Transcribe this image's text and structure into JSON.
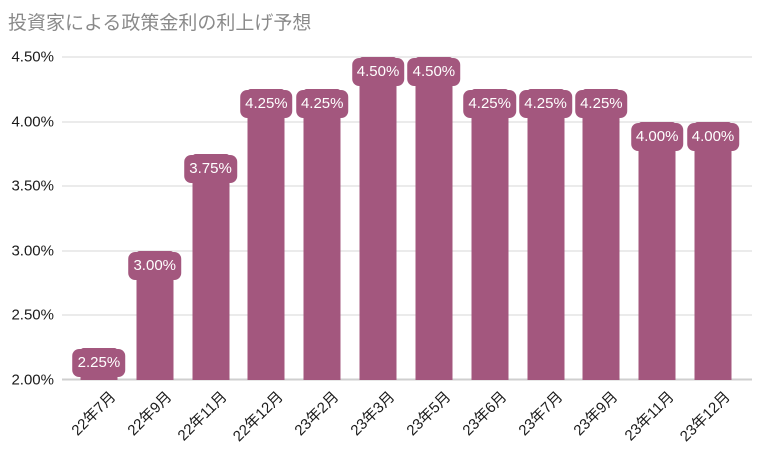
{
  "chart_data": {
    "type": "bar",
    "title": "投資家による政策金利の利上げ予想",
    "categories": [
      "22年7月",
      "22年9月",
      "22年11月",
      "22年12月",
      "23年2月",
      "23年3月",
      "23年5月",
      "23年6月",
      "23年7月",
      "23年9月",
      "23年11月",
      "23年12月"
    ],
    "values": [
      2.25,
      3.0,
      3.75,
      4.25,
      4.25,
      4.5,
      4.5,
      4.25,
      4.25,
      4.25,
      4.0,
      4.0
    ],
    "bar_labels": [
      "2.25%",
      "3.00%",
      "3.75%",
      "4.25%",
      "4.25%",
      "4.50%",
      "4.50%",
      "4.25%",
      "4.25%",
      "4.25%",
      "4.00%",
      "4.00%"
    ],
    "yticks": [
      2.0,
      2.5,
      3.0,
      3.5,
      4.0,
      4.5
    ],
    "ytick_labels": [
      "2.00%",
      "2.50%",
      "3.00%",
      "3.50%",
      "4.00%",
      "4.50%"
    ],
    "ylim": [
      2.0,
      4.5
    ],
    "xlabel": "",
    "ylabel": "",
    "grid": "horizontal",
    "legend": "none",
    "colors": {
      "bar": "#A3577E",
      "bar_label_bg": "#A3577E",
      "bar_label_text": "#FFFFFF",
      "gridline": "#D7D7D7",
      "baseline": "#CFCFCF",
      "axis_text": "#1A1A1A",
      "title_text": "#8A8A8A",
      "background": "#FFFFFF"
    }
  }
}
